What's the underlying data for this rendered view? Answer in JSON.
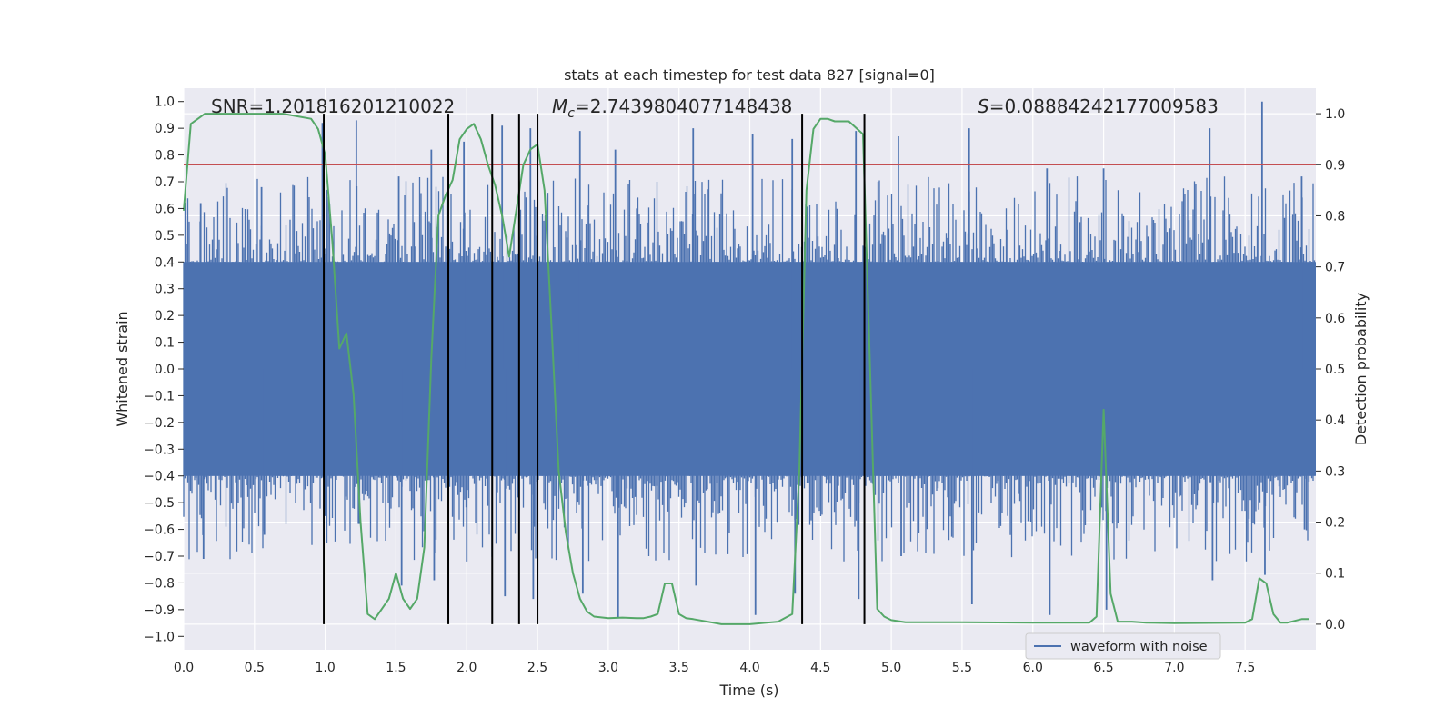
{
  "chart_data": {
    "type": "line",
    "title": "stats at each timestep for test data 827 [signal=0]",
    "xlabel": "Time (s)",
    "ylabel_left": "Whitened strain",
    "ylabel_right": "Detection probability",
    "xlim": [
      0.0,
      8.0
    ],
    "ylim_left": [
      -1.05,
      1.05
    ],
    "ylim_right": [
      -0.05,
      1.05
    ],
    "x_ticks": [
      "0.0",
      "0.5",
      "1.0",
      "1.5",
      "2.0",
      "2.5",
      "3.0",
      "3.5",
      "4.0",
      "4.5",
      "5.0",
      "5.5",
      "6.0",
      "6.5",
      "7.0",
      "7.5"
    ],
    "y_left_ticks": [
      "1.0",
      "0.9",
      "0.8",
      "0.7",
      "0.6",
      "0.5",
      "0.4",
      "0.3",
      "0.2",
      "0.1",
      "0.0",
      "-0.1",
      "-0.2",
      "-0.3",
      "-0.4",
      "-0.5",
      "-0.6",
      "-0.7",
      "-0.8",
      "-0.9",
      "-1.0"
    ],
    "y_right_ticks": [
      "1.0",
      "0.9",
      "0.8",
      "0.7",
      "0.6",
      "0.5",
      "0.4",
      "0.3",
      "0.2",
      "0.1",
      "0.0"
    ],
    "annotations": {
      "snr": "SNR=1.201816201210022",
      "mc_symbol": "M",
      "mc_sub": "c",
      "mc_value": "=2.7439804077148438",
      "s_symbol": "S",
      "s_value": "=0.08884242177009583"
    },
    "threshold": {
      "value": 0.9,
      "axis": "right",
      "color": "#c44e52"
    },
    "event_lines_x": [
      0.99,
      1.87,
      2.18,
      2.37,
      2.5,
      4.37,
      4.81
    ],
    "event_lines_range_right": [
      0.0,
      1.0
    ],
    "waveform": {
      "name": "waveform with noise",
      "color": "#4c72b0",
      "core_amplitude": 0.4,
      "peaks": [
        {
          "x": 0.12,
          "hi": 0.62,
          "lo": -0.71
        },
        {
          "x": 0.55,
          "hi": 0.68,
          "lo": -0.62
        },
        {
          "x": 0.98,
          "hi": 0.92,
          "lo": -0.55
        },
        {
          "x": 1.22,
          "hi": 0.93,
          "lo": -0.58
        },
        {
          "x": 1.52,
          "hi": 0.72,
          "lo": -0.81
        },
        {
          "x": 1.75,
          "hi": 0.82,
          "lo": -0.79
        },
        {
          "x": 1.98,
          "hi": 0.85,
          "lo": -0.72
        },
        {
          "x": 2.25,
          "hi": 0.91,
          "lo": -0.85
        },
        {
          "x": 2.45,
          "hi": 0.9,
          "lo": -0.86
        },
        {
          "x": 2.8,
          "hi": 0.89,
          "lo": -0.84
        },
        {
          "x": 3.05,
          "hi": 0.82,
          "lo": -0.93
        },
        {
          "x": 3.6,
          "hi": 0.9,
          "lo": -0.81
        },
        {
          "x": 4.02,
          "hi": 0.88,
          "lo": -0.92
        },
        {
          "x": 4.3,
          "hi": 0.86,
          "lo": -0.84
        },
        {
          "x": 4.75,
          "hi": 0.89,
          "lo": -0.86
        },
        {
          "x": 5.05,
          "hi": 0.87,
          "lo": -0.7
        },
        {
          "x": 5.55,
          "hi": 0.9,
          "lo": -0.88
        },
        {
          "x": 6.1,
          "hi": 0.75,
          "lo": -0.92
        },
        {
          "x": 6.5,
          "hi": 0.75,
          "lo": -0.9
        },
        {
          "x": 7.25,
          "hi": 0.9,
          "lo": -0.79
        },
        {
          "x": 7.62,
          "hi": 1.0,
          "lo": -0.77
        },
        {
          "x": 7.9,
          "hi": 0.72,
          "lo": -0.6
        }
      ]
    },
    "detection_probability": {
      "color": "#55a868",
      "x": [
        0.0,
        0.05,
        0.1,
        0.15,
        0.3,
        0.5,
        0.7,
        0.8,
        0.9,
        0.95,
        1.0,
        1.05,
        1.1,
        1.15,
        1.2,
        1.25,
        1.3,
        1.35,
        1.4,
        1.45,
        1.5,
        1.55,
        1.6,
        1.65,
        1.7,
        1.75,
        1.8,
        1.85,
        1.9,
        1.95,
        2.0,
        2.05,
        2.1,
        2.15,
        2.2,
        2.25,
        2.3,
        2.35,
        2.4,
        2.45,
        2.5,
        2.55,
        2.6,
        2.65,
        2.7,
        2.75,
        2.8,
        2.85,
        2.9,
        3.0,
        3.1,
        3.2,
        3.25,
        3.3,
        3.35,
        3.4,
        3.45,
        3.5,
        3.55,
        3.6,
        3.8,
        4.0,
        4.2,
        4.3,
        4.35,
        4.4,
        4.45,
        4.5,
        4.55,
        4.6,
        4.7,
        4.8,
        4.85,
        4.9,
        4.95,
        5.0,
        5.1,
        5.5,
        6.0,
        6.4,
        6.45,
        6.5,
        6.55,
        6.6,
        6.7,
        6.8,
        7.0,
        7.5,
        7.55,
        7.6,
        7.65,
        7.7,
        7.75,
        7.8,
        7.9,
        7.95
      ],
      "y": [
        0.81,
        0.98,
        0.99,
        1.0,
        1.0,
        1.0,
        1.0,
        0.995,
        0.99,
        0.97,
        0.92,
        0.75,
        0.54,
        0.57,
        0.45,
        0.2,
        0.02,
        0.01,
        0.03,
        0.05,
        0.1,
        0.05,
        0.03,
        0.05,
        0.15,
        0.52,
        0.8,
        0.84,
        0.87,
        0.95,
        0.97,
        0.98,
        0.95,
        0.9,
        0.86,
        0.8,
        0.72,
        0.81,
        0.9,
        0.93,
        0.94,
        0.85,
        0.58,
        0.3,
        0.18,
        0.1,
        0.05,
        0.025,
        0.015,
        0.012,
        0.013,
        0.012,
        0.012,
        0.015,
        0.02,
        0.08,
        0.08,
        0.02,
        0.012,
        0.01,
        0.0,
        0.0,
        0.005,
        0.02,
        0.3,
        0.85,
        0.97,
        0.99,
        0.99,
        0.985,
        0.985,
        0.96,
        0.5,
        0.03,
        0.015,
        0.008,
        0.004,
        0.004,
        0.003,
        0.003,
        0.015,
        0.42,
        0.06,
        0.005,
        0.005,
        0.003,
        0.002,
        0.003,
        0.01,
        0.09,
        0.08,
        0.02,
        0.003,
        0.003,
        0.01,
        0.01
      ]
    },
    "legend": {
      "placement": "lower-right",
      "entries": [
        "waveform with noise"
      ]
    },
    "grid": true
  }
}
